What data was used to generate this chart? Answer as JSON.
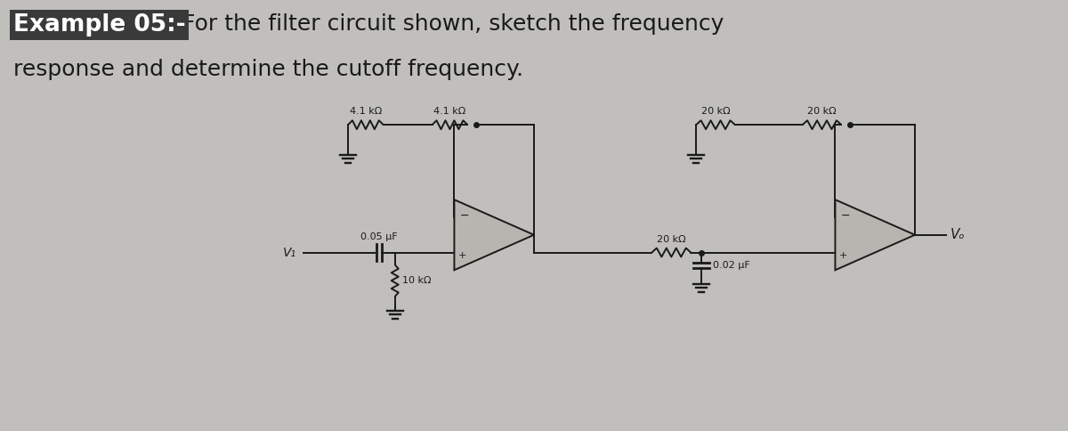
{
  "bg_color": "#c0bfbc",
  "title_bold": "Example 05:-",
  "title_rest1": " For the filter circuit shown, sketch the frequency",
  "title_line2": "response and determine the cutoff frequency.",
  "title_fontsize": 19,
  "bold_bg_color": "#4a4a4a",
  "line_color": "#1a1a1a",
  "opamp_fill": "#b8b5b0",
  "r1_label": "4.1 kΩ",
  "r2_label": "4.1 kΩ",
  "r3_label": "20 kΩ",
  "r4_label": "20 kΩ",
  "r5_label": "20 kΩ",
  "r6_label": "10 kΩ",
  "c1_label": "0.05 μF",
  "c2_label": "0.02 μF",
  "v1_label": "V₁",
  "vo_label": "Vₒ"
}
